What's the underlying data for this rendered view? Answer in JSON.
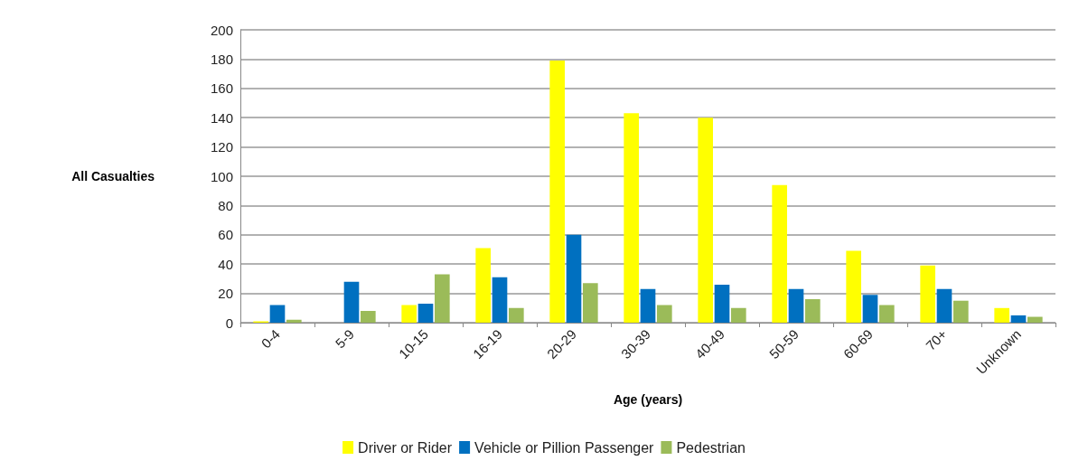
{
  "chart_data": {
    "type": "bar",
    "xlabel": "Age (years)",
    "ylabel": "All Casualties",
    "categories": [
      "0-4",
      "5-9",
      "10-15",
      "16-19",
      "20-29",
      "30-39",
      "40-49",
      "50-59",
      "60-69",
      "70+",
      "Unknown"
    ],
    "series": [
      {
        "name": "Driver or Rider",
        "color": "#ffff00",
        "values": [
          1,
          0,
          12,
          51,
          179,
          143,
          140,
          94,
          49,
          39,
          10
        ]
      },
      {
        "name": "Vehicle or Pillion Passenger",
        "color": "#0070c0",
        "values": [
          12,
          28,
          13,
          31,
          60,
          23,
          26,
          23,
          19,
          23,
          5
        ]
      },
      {
        "name": "Pedestrian",
        "color": "#9bbb59",
        "values": [
          2,
          8,
          33,
          10,
          27,
          12,
          10,
          16,
          12,
          15,
          4
        ]
      }
    ],
    "ylim": [
      0,
      200
    ],
    "yticks": [
      0,
      20,
      40,
      60,
      80,
      100,
      120,
      140,
      160,
      180,
      200
    ],
    "grid": "y",
    "legend": "bottom"
  }
}
